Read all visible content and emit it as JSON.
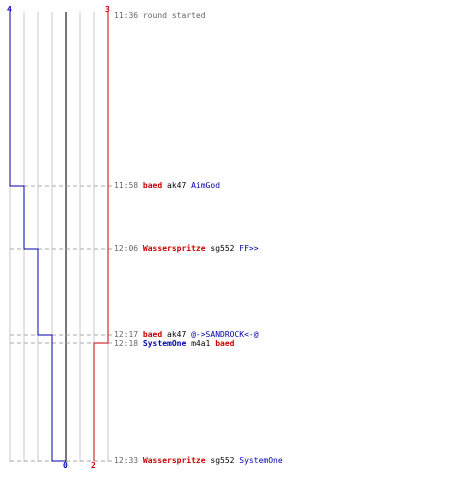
{
  "score": {
    "blue_start": "4",
    "red_start": "3",
    "blue_end": "0",
    "red_end": "2"
  },
  "colors": {
    "blue": "#0000aa",
    "red": "#cc0000",
    "grid": "#c8c8c8",
    "axis": "#777777"
  },
  "events": [
    {
      "time": "11:36",
      "text": "round started"
    },
    {
      "time": "11:58",
      "killer": "baed",
      "weapon": "ak47",
      "victim": "AimGod"
    },
    {
      "time": "12:06",
      "killer": "Wasserspritze",
      "weapon": "sg552",
      "victim": "FF>>"
    },
    {
      "time": "12:17",
      "killer": "baed",
      "weapon": "ak47",
      "victim": "@->SANDROCK<-@"
    },
    {
      "time": "12:18",
      "killer": "SystemOne",
      "weapon": "m4a1",
      "victim": "baed"
    },
    {
      "time": "12:33",
      "killer": "Wasserspritze",
      "weapon": "sg552",
      "victim": "SystemOne"
    }
  ]
}
